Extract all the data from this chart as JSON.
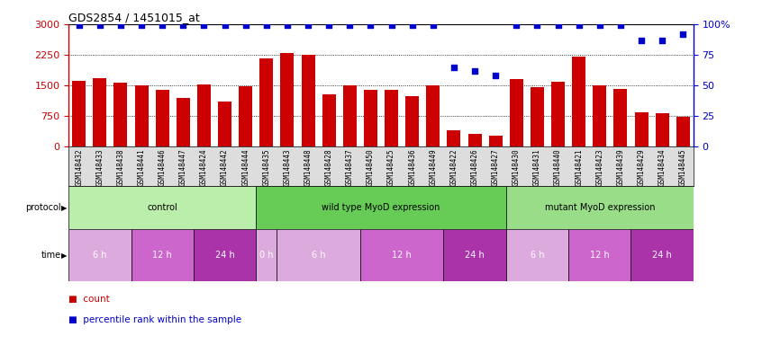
{
  "title": "GDS2854 / 1451015_at",
  "samples": [
    "GSM148432",
    "GSM148433",
    "GSM148438",
    "GSM148441",
    "GSM148446",
    "GSM148447",
    "GSM148424",
    "GSM148442",
    "GSM148444",
    "GSM148435",
    "GSM148443",
    "GSM148448",
    "GSM148428",
    "GSM148437",
    "GSM148450",
    "GSM148425",
    "GSM148436",
    "GSM148449",
    "GSM148422",
    "GSM148426",
    "GSM148427",
    "GSM148430",
    "GSM148431",
    "GSM148440",
    "GSM148421",
    "GSM148423",
    "GSM148439",
    "GSM148429",
    "GSM148434",
    "GSM148445"
  ],
  "counts": [
    1620,
    1670,
    1560,
    1500,
    1380,
    1200,
    1530,
    1100,
    1480,
    2170,
    2300,
    2250,
    1280,
    1490,
    1400,
    1380,
    1230,
    1490,
    400,
    310,
    270,
    1650,
    1450,
    1590,
    2200,
    1500,
    1420,
    850,
    810,
    730
  ],
  "percentile": [
    99,
    99,
    99,
    99,
    99,
    99,
    99,
    99,
    99,
    99,
    99,
    99,
    99,
    99,
    99,
    99,
    99,
    99,
    65,
    62,
    58,
    99,
    99,
    99,
    99,
    99,
    99,
    87,
    87,
    92
  ],
  "bar_color": "#cc0000",
  "dot_color": "#0000cc",
  "ylim_left": [
    0,
    3000
  ],
  "yticks_left": [
    0,
    750,
    1500,
    2250,
    3000
  ],
  "ylim_right": [
    0,
    100
  ],
  "yticks_right": [
    0,
    25,
    50,
    75,
    100
  ],
  "protocol_groups": [
    {
      "label": "control",
      "start": 0,
      "end": 9,
      "color": "#bbeeaa"
    },
    {
      "label": "wild type MyoD expression",
      "start": 9,
      "end": 21,
      "color": "#66cc55"
    },
    {
      "label": "mutant MyoD expression",
      "start": 21,
      "end": 30,
      "color": "#99dd88"
    }
  ],
  "time_groups": [
    {
      "label": "6 h",
      "start": 0,
      "end": 3,
      "color": "#ddaadd"
    },
    {
      "label": "12 h",
      "start": 3,
      "end": 6,
      "color": "#cc66cc"
    },
    {
      "label": "24 h",
      "start": 6,
      "end": 9,
      "color": "#aa33aa"
    },
    {
      "label": "0 h",
      "start": 9,
      "end": 10,
      "color": "#ddaadd"
    },
    {
      "label": "6 h",
      "start": 10,
      "end": 14,
      "color": "#ddaadd"
    },
    {
      "label": "12 h",
      "start": 14,
      "end": 18,
      "color": "#cc66cc"
    },
    {
      "label": "24 h",
      "start": 18,
      "end": 21,
      "color": "#aa33aa"
    },
    {
      "label": "6 h",
      "start": 21,
      "end": 24,
      "color": "#ddaadd"
    },
    {
      "label": "12 h",
      "start": 24,
      "end": 27,
      "color": "#cc66cc"
    },
    {
      "label": "24 h",
      "start": 27,
      "end": 30,
      "color": "#aa33aa"
    }
  ],
  "bg_color": "#ffffff",
  "label_bg": "#dddddd"
}
